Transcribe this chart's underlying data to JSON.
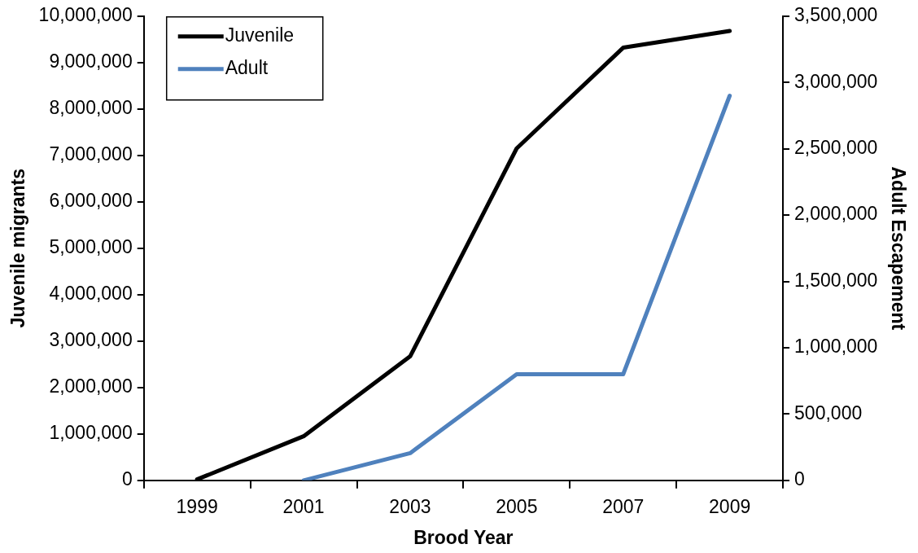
{
  "chart_data": {
    "type": "line",
    "xlabel": "Brood Year",
    "ylabel": "Juvenile migrants",
    "y2label": "Adult Escapement",
    "categories": [
      "1999",
      "2001",
      "2003",
      "2005",
      "2007",
      "2009"
    ],
    "series": [
      {
        "name": "Juvenile",
        "color": "#000000",
        "values": [
          20000,
          950000,
          2670000,
          7150000,
          9320000,
          9680000
        ]
      },
      {
        "name": "Adult",
        "color": "#4f81bd",
        "axis": "y2",
        "values": [
          null,
          0,
          205000,
          800000,
          800000,
          2900000
        ]
      }
    ],
    "ylim": [
      0,
      10000000
    ],
    "yticks": [
      {
        "value": 0,
        "label": "0"
      },
      {
        "value": 1000000,
        "label": "1,000,000"
      },
      {
        "value": 2000000,
        "label": "2,000,000"
      },
      {
        "value": 3000000,
        "label": "3,000,000"
      },
      {
        "value": 4000000,
        "label": "4,000,000"
      },
      {
        "value": 5000000,
        "label": "5,000,000"
      },
      {
        "value": 6000000,
        "label": "6,000,000"
      },
      {
        "value": 7000000,
        "label": "7,000,000"
      },
      {
        "value": 8000000,
        "label": "8,000,000"
      },
      {
        "value": 9000000,
        "label": "9,000,000"
      },
      {
        "value": 10000000,
        "label": "10,000,000"
      }
    ],
    "y2lim": [
      0,
      3500000
    ],
    "y2ticks": [
      {
        "value": 0,
        "label": "0"
      },
      {
        "value": 500000,
        "label": "500,000"
      },
      {
        "value": 1000000,
        "label": "1,000,000"
      },
      {
        "value": 1500000,
        "label": "1,500,000"
      },
      {
        "value": 2000000,
        "label": "2,000,000"
      },
      {
        "value": 2500000,
        "label": "2,500,000"
      },
      {
        "value": 3000000,
        "label": "3,000,000"
      },
      {
        "value": 3500000,
        "label": "3,500,000"
      }
    ],
    "legend": "top left",
    "grid": false,
    "marker": "none",
    "line_style": "solid"
  }
}
